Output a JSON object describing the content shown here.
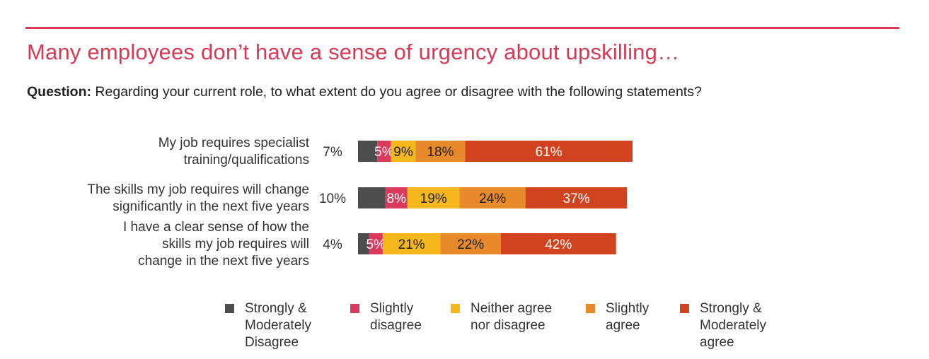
{
  "header": {
    "title": "Many employees don’t have a sense of urgency about upskilling…",
    "question_label": "Question:",
    "question_text": "Regarding your current role, to what extent do you agree or disagree with the following statements?"
  },
  "chart_data": {
    "type": "bar",
    "orientation": "horizontal-stacked",
    "unit": "%",
    "categories": [
      "My job requires specialist training/qualifications",
      "The skills my job requires will change significantly in the next five years",
      "I have a clear sense of how the skills my job requires will change in the next five years"
    ],
    "category_lines": [
      [
        "My job requires specialist",
        "training/qualifications"
      ],
      [
        "The skills my job requires will change",
        "significantly in the next five years"
      ],
      [
        "I have a clear sense of how the",
        "skills my job requires will",
        "change in the next five years"
      ]
    ],
    "series": [
      {
        "name": "Strongly & Moderately Disagree",
        "values": [
          7,
          10,
          4
        ],
        "color": "#4d4d4d"
      },
      {
        "name": "Slightly disagree",
        "values": [
          5,
          8,
          5
        ],
        "color": "#d93a5e"
      },
      {
        "name": "Neither agree nor disagree",
        "values": [
          9,
          19,
          21
        ],
        "color": "#f5b71c"
      },
      {
        "name": "Slightly agree",
        "values": [
          18,
          24,
          22
        ],
        "color": "#e8892b"
      },
      {
        "name": "Strongly & Moderately agree",
        "values": [
          61,
          37,
          42
        ],
        "color": "#d1431f"
      }
    ],
    "label_format": "{v}%",
    "first_series_label_position": "outside-left",
    "legend_position": "bottom",
    "grid": false
  },
  "legend": [
    {
      "label": "Strongly &\nModerately\nDisagree",
      "color": "#4d4d4d"
    },
    {
      "label": "Slightly\ndisagree",
      "color": "#d93a5e"
    },
    {
      "label": "Neither agree\nnor disagree",
      "color": "#f5b71c"
    },
    {
      "label": "Slightly\nagree",
      "color": "#e8892b"
    },
    {
      "label": "Strongly &\nModerately\nagree",
      "color": "#d1431f"
    }
  ]
}
